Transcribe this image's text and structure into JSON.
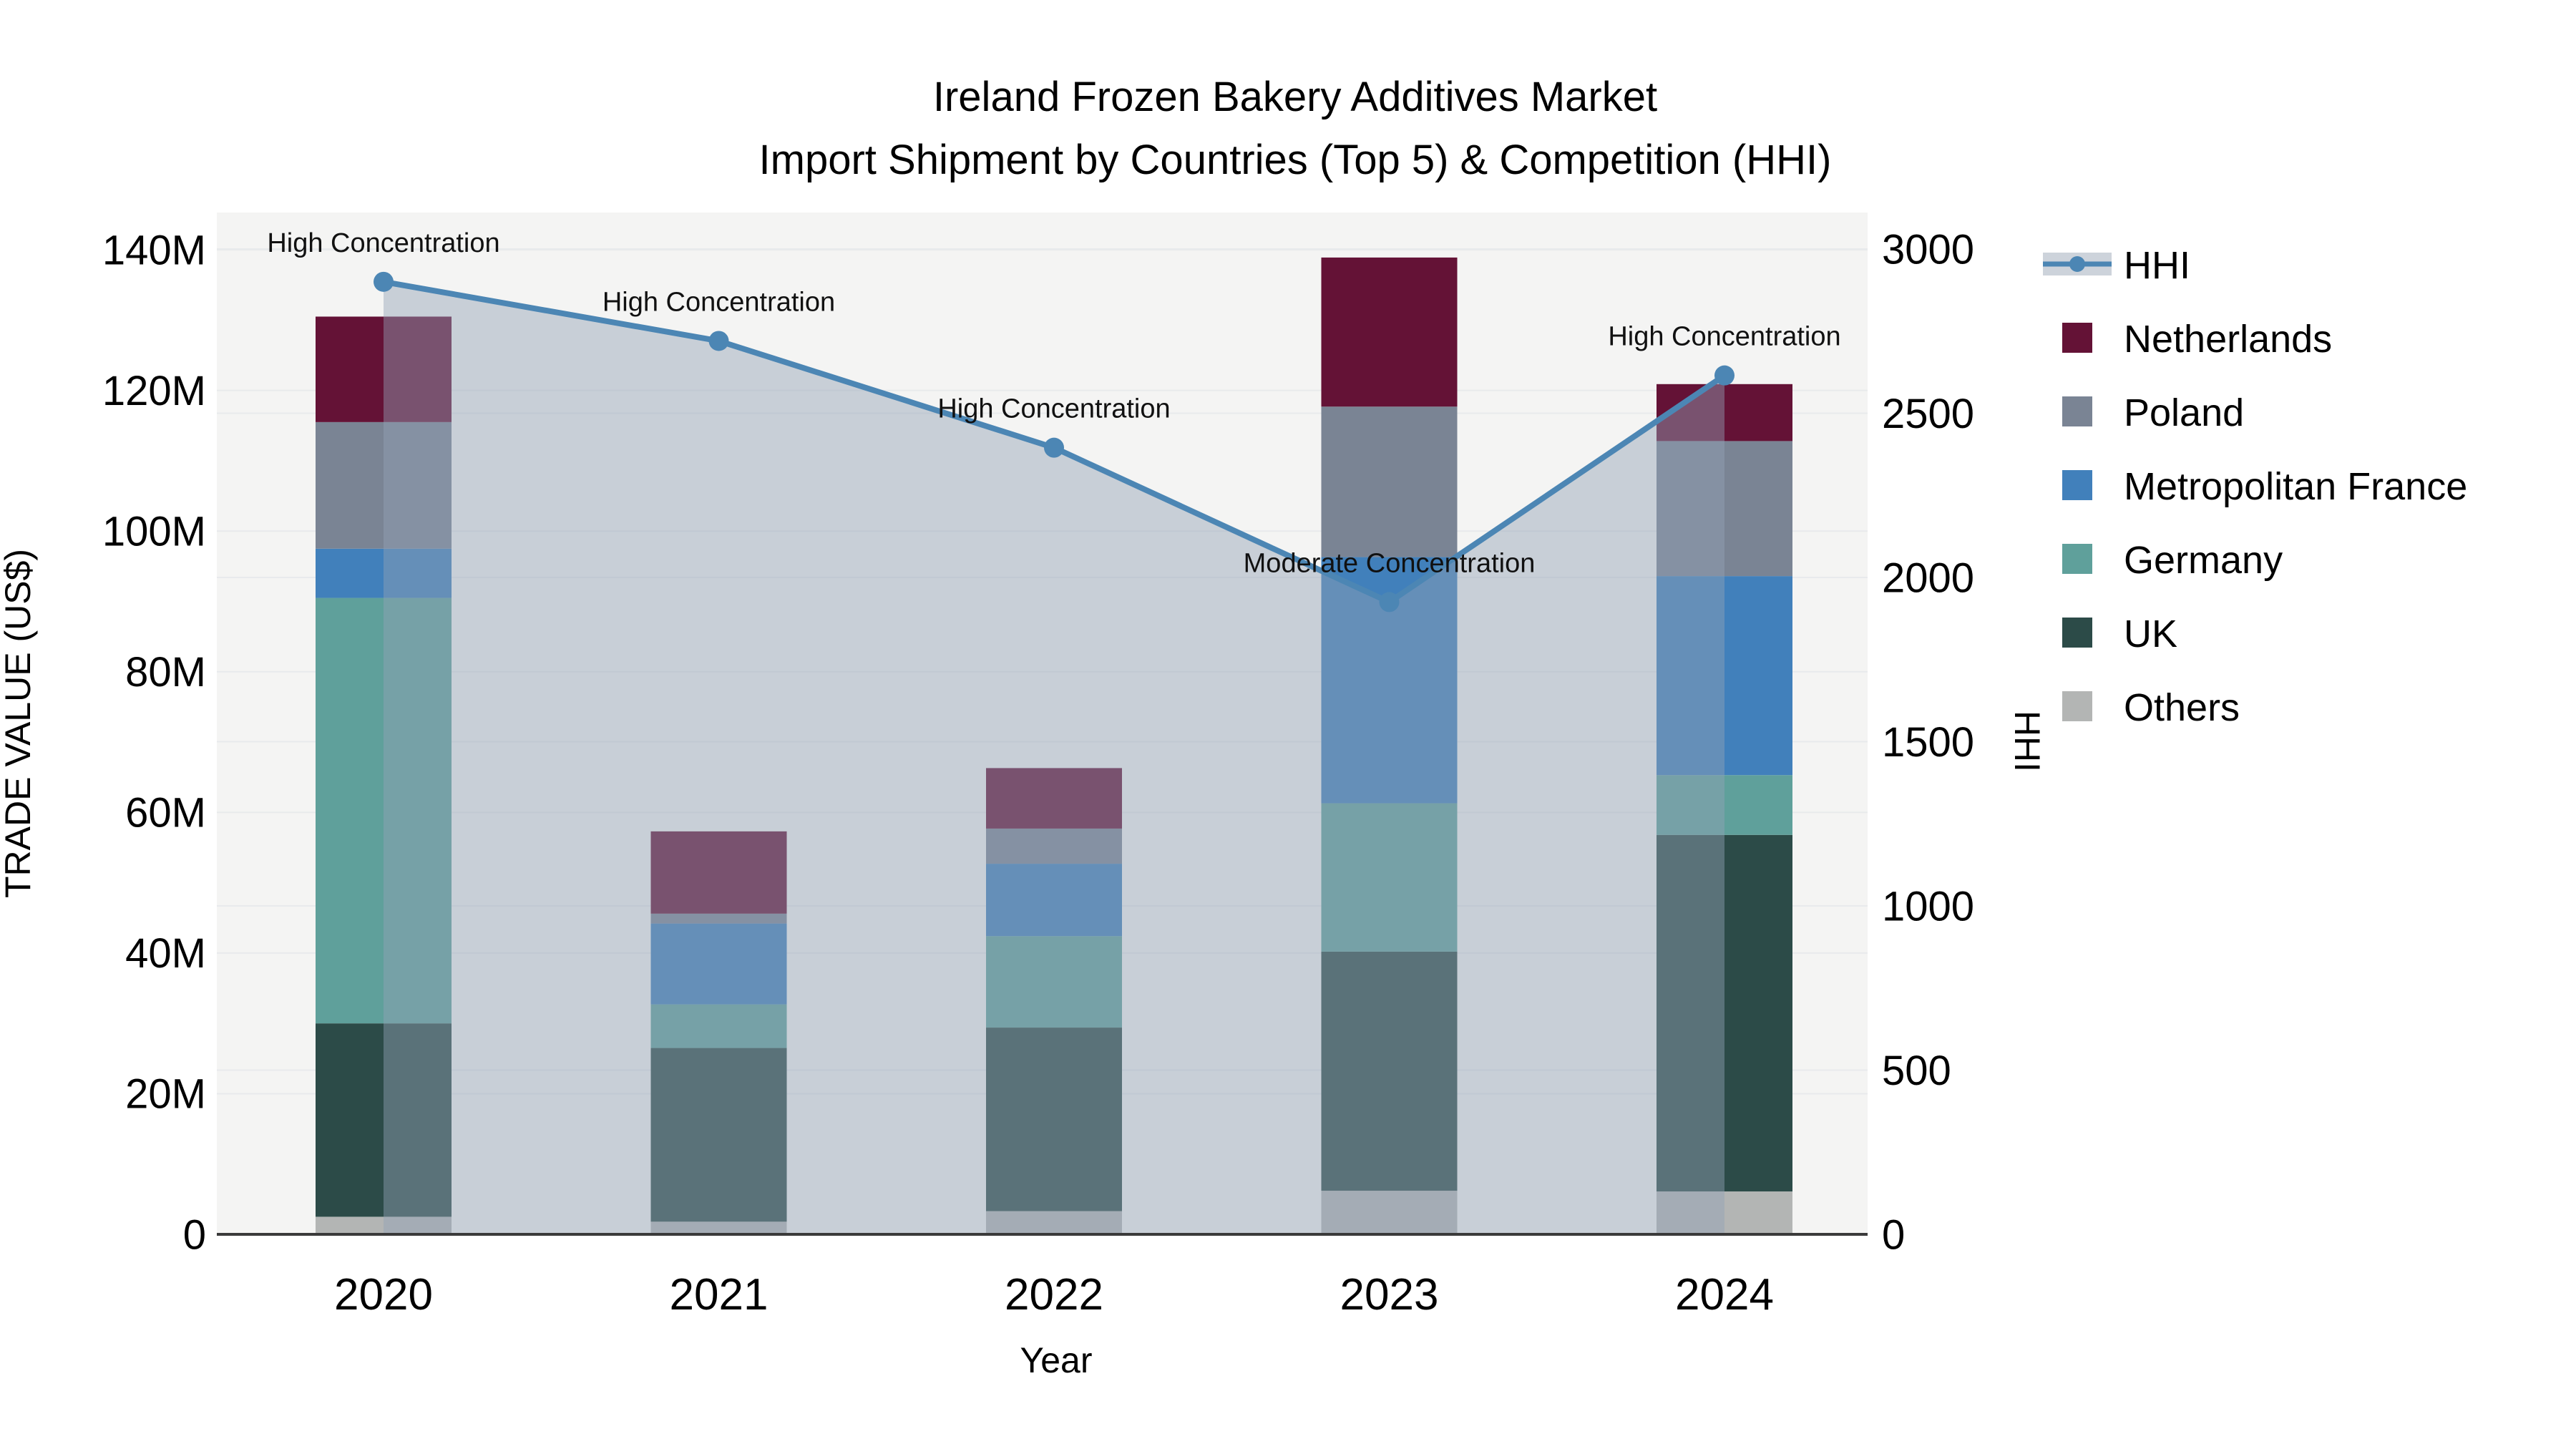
{
  "chart_data": {
    "type": "bar",
    "subtype": "stacked-bar-with-line",
    "title": "Ireland Frozen Bakery Additives Market",
    "subtitle": "Import Shipment by Countries (Top 5) & Competition (HHI)",
    "units": "Million US$",
    "categories": [
      "2020",
      "2021",
      "2022",
      "2023",
      "2024"
    ],
    "series": [
      {
        "name": "Others",
        "color": "#B3B5B4",
        "values": [
          2.5,
          1.8,
          3.3,
          6.2,
          6.1
        ]
      },
      {
        "name": "UK",
        "color": "#2C4B48",
        "values": [
          27.5,
          24.7,
          26.1,
          34.0,
          50.7
        ]
      },
      {
        "name": "Germany",
        "color": "#5FA09B",
        "values": [
          60.5,
          6.2,
          13.0,
          21.1,
          8.5
        ]
      },
      {
        "name": "Metropolitan France",
        "color": "#4180BB",
        "values": [
          7.0,
          11.5,
          10.3,
          35.0,
          28.3
        ]
      },
      {
        "name": "Poland",
        "color": "#7A8494",
        "values": [
          18.0,
          1.4,
          5.0,
          21.4,
          19.2
        ]
      },
      {
        "name": "Netherlands",
        "color": "#641236",
        "values": [
          15.0,
          11.7,
          8.6,
          21.2,
          8.1
        ]
      }
    ],
    "totals": [
      130.5,
      57.3,
      66.3,
      138.9,
      120.9
    ],
    "hhi": {
      "name": "HHI",
      "values": [
        2900,
        2720,
        2395,
        1925,
        2615
      ],
      "line_color": "#4C86B4",
      "area_color": "rgba(147,162,182,0.45)"
    },
    "annotations": [
      {
        "category": "2020",
        "label": "High Concentration"
      },
      {
        "category": "2021",
        "label": "High Concentration"
      },
      {
        "category": "2022",
        "label": "High Concentration"
      },
      {
        "category": "2023",
        "label": "Moderate Concentration"
      },
      {
        "category": "2024",
        "label": "High Concentration"
      }
    ],
    "x_axis": {
      "label": "Year"
    },
    "y_left": {
      "label": "TRADE VALUE (US$)",
      "tick_labels": [
        "0",
        "20M",
        "40M",
        "60M",
        "80M",
        "100M",
        "120M",
        "140M"
      ],
      "tick_values": [
        0,
        20,
        40,
        60,
        80,
        100,
        120,
        140
      ],
      "range": [
        0,
        145.3
      ]
    },
    "y_right": {
      "label": "HHI",
      "tick_labels": [
        "0",
        "500",
        "1000",
        "1500",
        "2000",
        "2500",
        "3000"
      ],
      "tick_values": [
        0,
        500,
        1000,
        1500,
        2000,
        2500,
        3000
      ],
      "range": [
        0,
        3111
      ]
    },
    "legend": {
      "items": [
        {
          "label": "HHI",
          "type": "line",
          "color": "#4C86B4"
        },
        {
          "label": "Netherlands",
          "type": "patch",
          "color": "#641236"
        },
        {
          "label": "Poland",
          "type": "patch",
          "color": "#7A8494"
        },
        {
          "label": "Metropolitan France",
          "type": "patch",
          "color": "#4180BB"
        },
        {
          "label": "Germany",
          "type": "patch",
          "color": "#5FA09B"
        },
        {
          "label": "UK",
          "type": "patch",
          "color": "#2C4B48"
        },
        {
          "label": "Others",
          "type": "patch",
          "color": "#B3B5B4"
        }
      ],
      "position": "right"
    },
    "style": {
      "plot_bg": "#F4F4F3",
      "grid_color": "#E8EAEC",
      "spine_color": "#3A3A3A",
      "legend_line_band": "#CDD3DB"
    },
    "grid": true
  }
}
